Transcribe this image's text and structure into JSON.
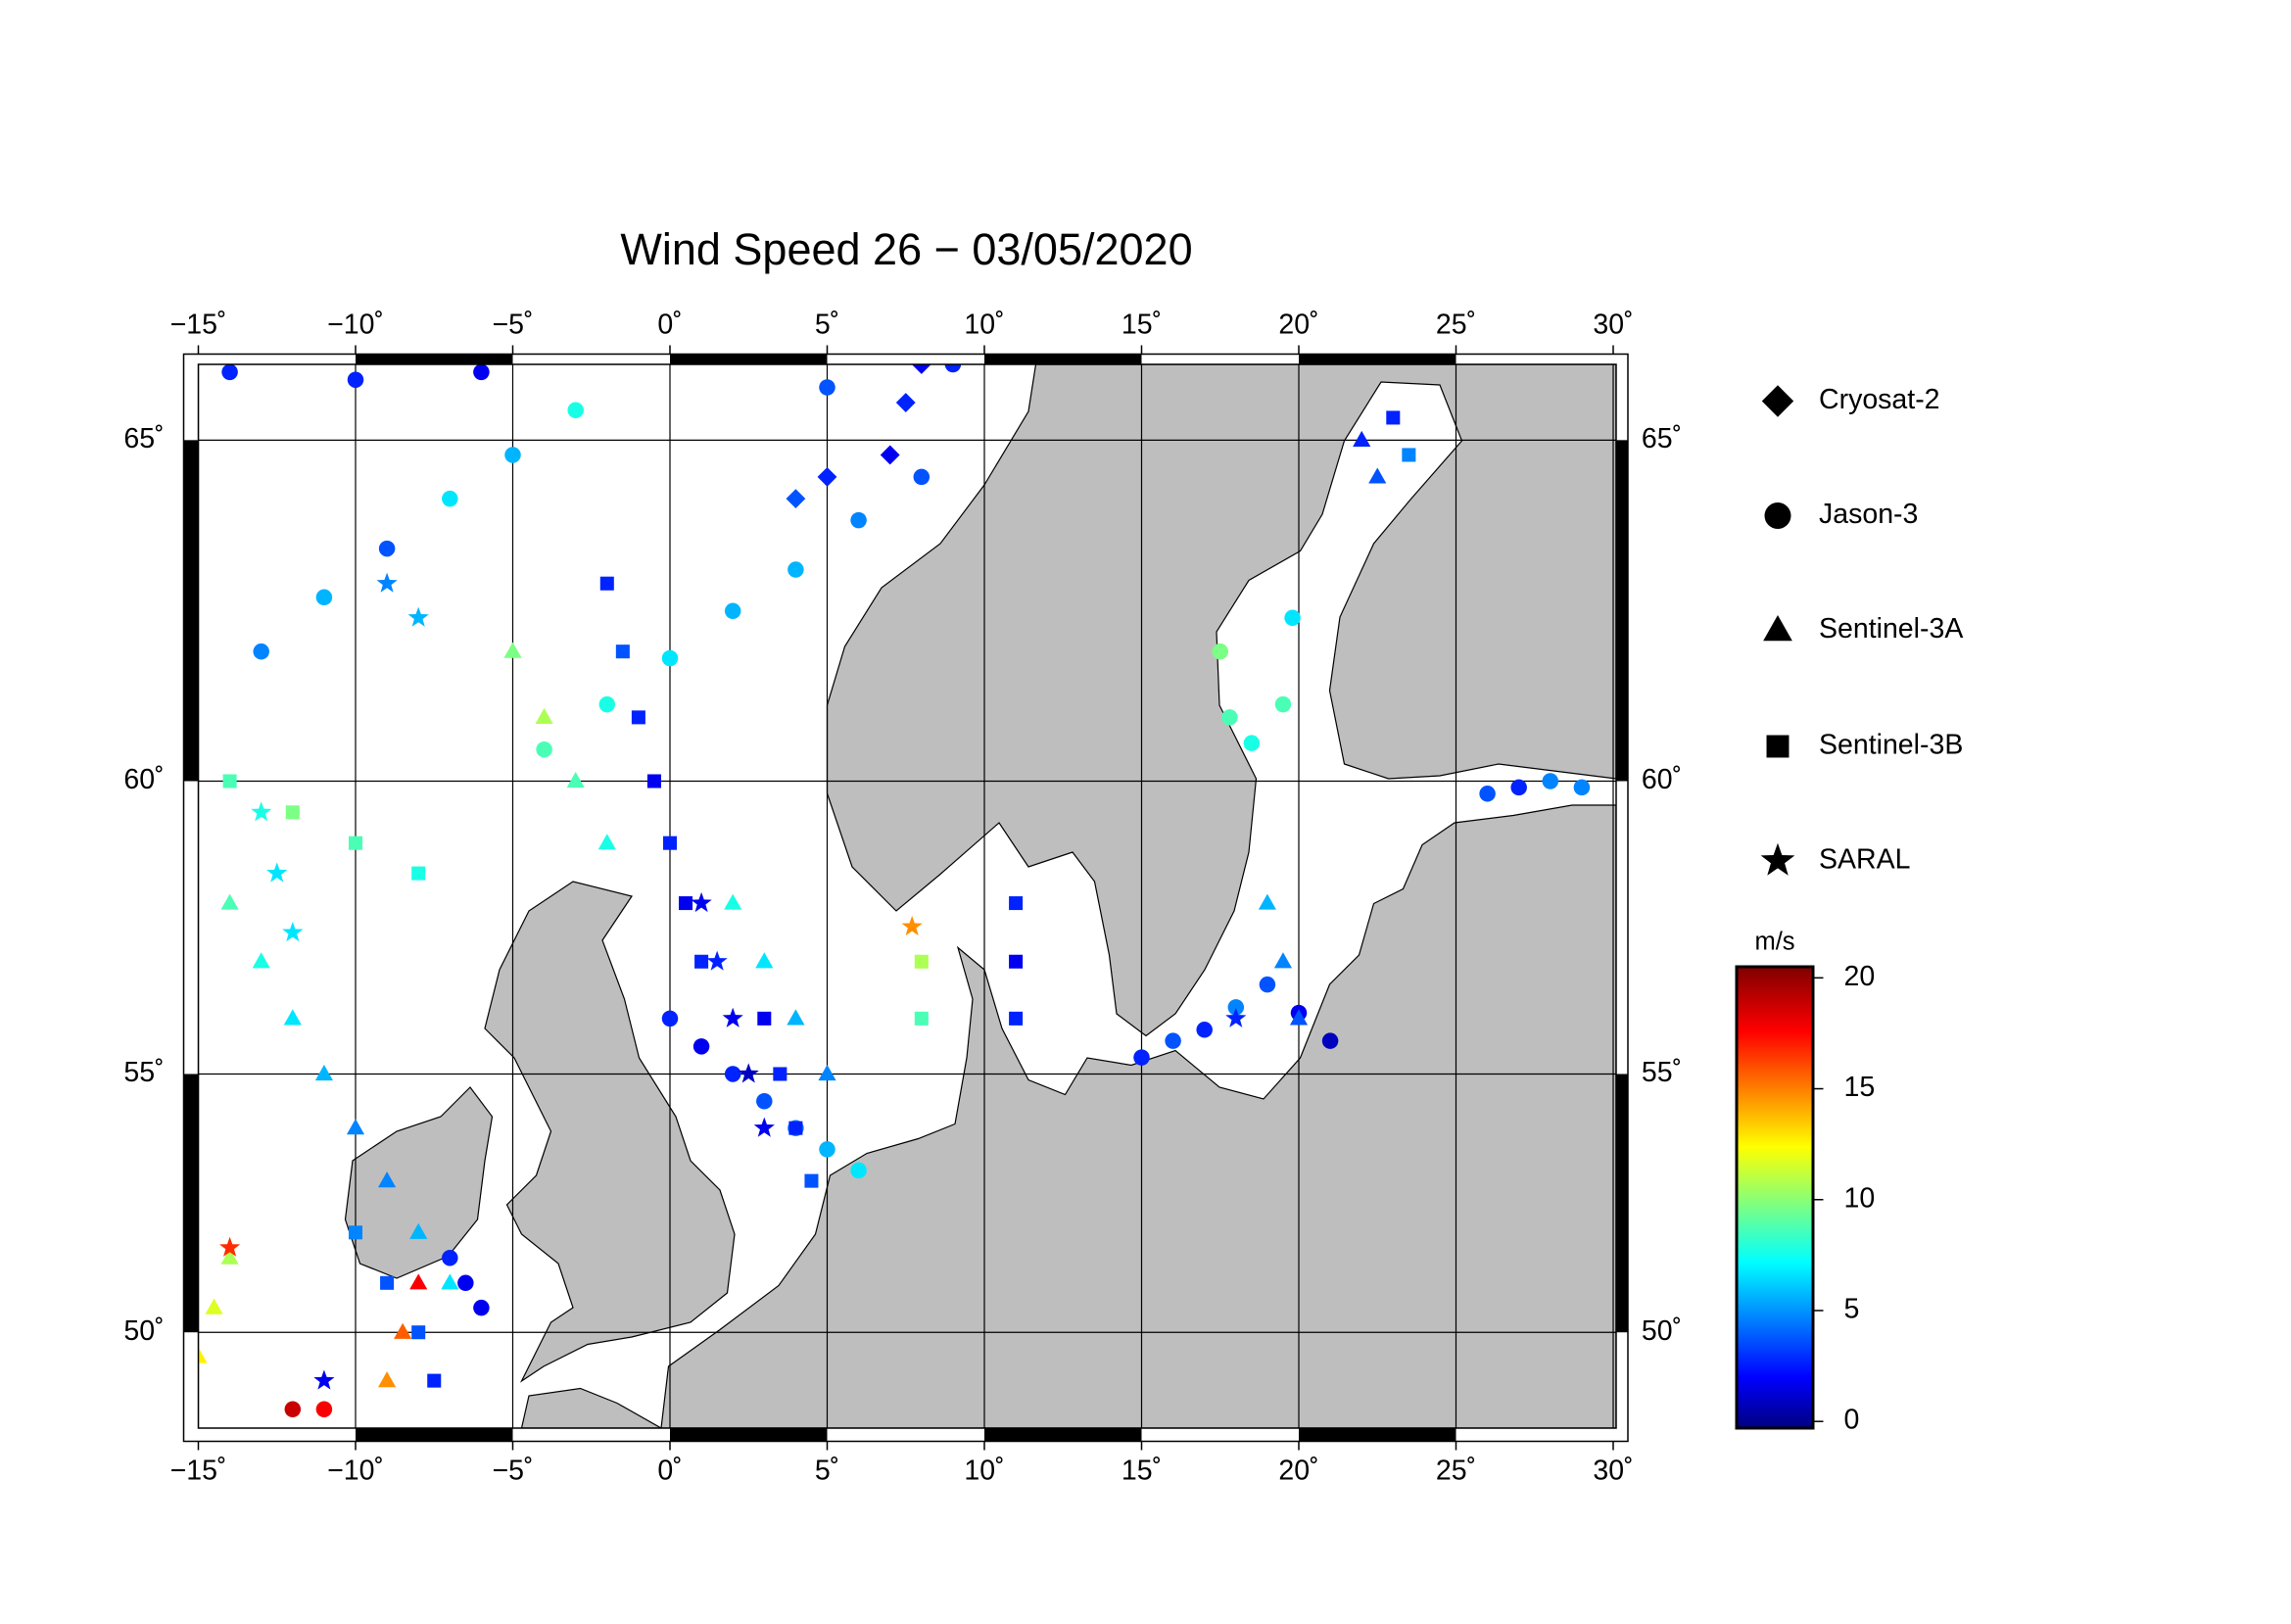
{
  "chart_data": {
    "type": "map-scatter",
    "title": "Wind Speed 26 − 03/05/2020",
    "projection": "mercator",
    "xlim": [
      -15,
      30
    ],
    "ylim": [
      48,
      66
    ],
    "xticks": [
      {
        "value": -15,
        "label": "−15˚"
      },
      {
        "value": -10,
        "label": "−10˚"
      },
      {
        "value": -5,
        "label": "−5˚"
      },
      {
        "value": 0,
        "label": "0˚"
      },
      {
        "value": 5,
        "label": "5˚"
      },
      {
        "value": 10,
        "label": "10˚"
      },
      {
        "value": 15,
        "label": "15˚"
      },
      {
        "value": 20,
        "label": "20˚"
      },
      {
        "value": 25,
        "label": "25˚"
      },
      {
        "value": 30,
        "label": "30˚"
      }
    ],
    "yticks": [
      {
        "value": 50,
        "label": "50˚"
      },
      {
        "value": 55,
        "label": "55˚"
      },
      {
        "value": 60,
        "label": "60˚"
      },
      {
        "value": 65,
        "label": "65˚"
      }
    ],
    "grid": true,
    "colorbar_label": "m/s",
    "clim": [
      -0.3,
      20.5
    ],
    "cticks": [
      0,
      5,
      10,
      15,
      20
    ],
    "colormap": "jet",
    "series": [
      {
        "name": "Cryosat-2",
        "marker": "diamond",
        "x": [
          7,
          7.5,
          8,
          5,
          4
        ],
        "y": [
          64.8,
          65.5,
          66,
          64.5,
          64.2
        ],
        "values": [
          2,
          3,
          2,
          3,
          4
        ]
      },
      {
        "name": "Jason-3",
        "marker": "circle",
        "x": [
          -13,
          -11,
          -9,
          -7,
          -5,
          -3,
          -4,
          -2,
          0,
          2,
          4,
          6,
          8,
          0,
          1,
          2,
          3,
          4,
          5,
          6,
          15,
          16,
          17,
          18,
          19,
          20,
          21,
          17.5,
          17.8,
          18.5,
          19.5,
          19.8,
          -14,
          -10,
          -6,
          5,
          9,
          26,
          27,
          28,
          29,
          -7,
          -6.5,
          -6,
          -12,
          -11
        ],
        "y": [
          62,
          62.8,
          63.5,
          64.2,
          64.8,
          65.4,
          60.5,
          61.2,
          61.9,
          62.6,
          63.2,
          63.9,
          64.5,
          56,
          55.5,
          55,
          54.5,
          54,
          53.6,
          53.2,
          55.3,
          55.6,
          55.8,
          56.2,
          56.6,
          56.1,
          55.6,
          62,
          61,
          60.6,
          61.2,
          62.5,
          65.9,
          65.8,
          65.9,
          65.7,
          66,
          59.8,
          59.9,
          60,
          59.9,
          51.5,
          51,
          50.5,
          48.4,
          48.4
        ],
        "values": [
          5,
          6,
          4,
          7,
          6,
          8,
          9,
          8,
          7,
          6,
          6,
          5,
          4,
          3,
          2,
          3,
          4,
          5,
          6,
          7,
          3,
          4,
          3,
          5,
          4,
          2,
          1,
          10,
          9,
          8,
          9,
          7,
          3,
          3,
          2,
          4,
          3,
          4,
          3,
          5,
          5,
          3,
          2,
          2,
          19,
          18
        ]
      },
      {
        "name": "Sentinel-3A",
        "marker": "triangle",
        "x": [
          -14,
          -13,
          -12,
          -11,
          -10,
          -9,
          -8,
          -7,
          -9,
          -8.5,
          -8,
          -15,
          -14.5,
          -14,
          2,
          3,
          4,
          5,
          -5,
          -4,
          -3,
          -2,
          19,
          19.5,
          20,
          22,
          22.5
        ],
        "y": [
          58,
          57,
          56,
          55,
          54,
          53,
          52,
          51,
          49,
          50,
          51,
          49.5,
          50.5,
          51.5,
          58,
          57,
          56,
          55,
          62,
          61,
          60,
          59,
          58,
          57,
          56,
          65,
          64.5
        ],
        "values": [
          9,
          8,
          7,
          6,
          5,
          5,
          6,
          7,
          15,
          16,
          18,
          13,
          12,
          11,
          8,
          7,
          6,
          5,
          10,
          11,
          9,
          8,
          6,
          5,
          4,
          3,
          4
        ]
      },
      {
        "name": "Sentinel-3B",
        "marker": "square",
        "x": [
          -10,
          -9,
          -8,
          -7.5,
          -2,
          -1.5,
          -1,
          -0.5,
          0,
          0.5,
          1,
          3,
          3.5,
          4,
          4.5,
          11,
          11,
          11,
          23,
          23.5,
          -14,
          -12,
          -10,
          -8,
          8,
          8
        ],
        "y": [
          52,
          51,
          50,
          49,
          63,
          62,
          61,
          60,
          59,
          58,
          57,
          56,
          55,
          54,
          53,
          58,
          57,
          56,
          65.3,
          64.8,
          60,
          59.5,
          59,
          58.5,
          57,
          56
        ],
        "values": [
          5,
          4,
          4,
          3,
          3,
          4,
          3,
          2,
          3,
          2,
          3,
          2,
          3,
          3,
          4,
          3,
          2,
          3,
          3,
          5,
          9,
          10,
          9,
          8,
          11,
          9
        ]
      },
      {
        "name": "SARAL",
        "marker": "star",
        "x": [
          1,
          1.5,
          2,
          2.5,
          3,
          -13,
          -12.5,
          -12,
          -14,
          7.7,
          18,
          -11,
          -9,
          -8
        ],
        "y": [
          58,
          57,
          56,
          55,
          54,
          59.5,
          58.5,
          57.5,
          51.7,
          57.6,
          56,
          49,
          63,
          62.5
        ],
        "values": [
          2,
          3,
          2,
          1,
          2,
          8,
          7,
          7,
          17,
          15,
          3,
          2,
          5,
          6
        ]
      }
    ]
  }
}
